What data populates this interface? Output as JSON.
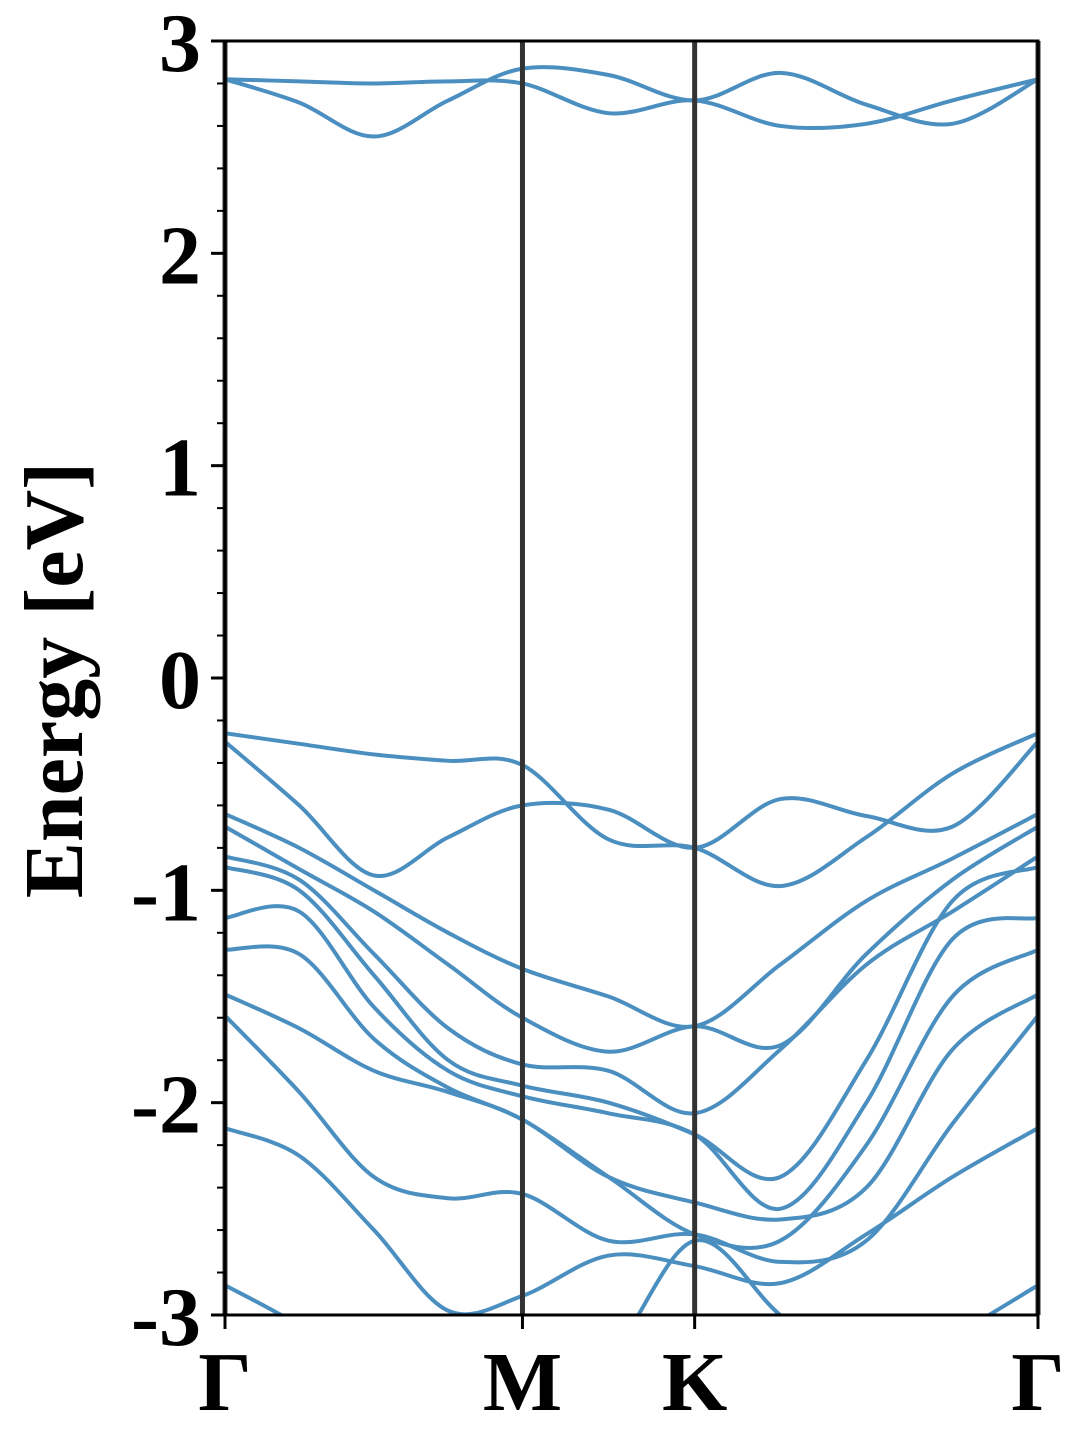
{
  "chart_data": {
    "type": "line",
    "y_label": "Energy [eV]",
    "x": [
      0,
      0.144,
      0.289,
      0.433,
      0.577,
      0.744,
      0.911,
      1.077,
      1.244,
      1.411,
      1.577
    ],
    "xlim": [
      0,
      1.577
    ],
    "xticks": [
      {
        "value": 0,
        "label": "Γ"
      },
      {
        "value": 0.577,
        "label": "M"
      },
      {
        "value": 0.911,
        "label": "K"
      },
      {
        "value": 1.577,
        "label": "Γ"
      }
    ],
    "ylim": [
      -3,
      3
    ],
    "yticks": [
      -3,
      -2,
      -1,
      0,
      1,
      2,
      3
    ],
    "yminorticks": [
      -2.8,
      -2.6,
      -2.4,
      -2.2,
      -1.8,
      -1.6,
      -1.4,
      -1.2,
      -0.8,
      -0.6,
      -0.4,
      -0.2,
      0.2,
      0.4,
      0.6,
      0.8,
      1.2,
      1.4,
      1.6,
      1.8,
      2.2,
      2.4,
      2.6,
      2.8
    ],
    "xtick_line_color": "#333333",
    "series": [
      {
        "color": "#4a8fc0",
        "values": [
          2.82,
          2.71,
          2.55,
          2.72,
          2.87,
          2.84,
          2.72,
          2.85,
          2.7,
          2.61,
          2.82
        ]
      },
      {
        "color": "#4a8fc0",
        "values": [
          2.82,
          2.81,
          2.8,
          2.81,
          2.8,
          2.66,
          2.72,
          2.6,
          2.61,
          2.72,
          2.82
        ]
      },
      {
        "color": "#4a8fc0",
        "values": [
          -0.26,
          -0.31,
          -0.36,
          -0.39,
          -0.41,
          -0.76,
          -0.8,
          -0.98,
          -0.75,
          -0.45,
          -0.26
        ]
      },
      {
        "color": "#4a8fc0",
        "values": [
          -0.3,
          -0.6,
          -0.93,
          -0.75,
          -0.6,
          -0.62,
          -0.8,
          -0.57,
          -0.65,
          -0.7,
          -0.3
        ]
      },
      {
        "color": "#4a8fc0",
        "values": [
          -0.64,
          -0.8,
          -1.0,
          -1.2,
          -1.37,
          -1.5,
          -1.64,
          -1.35,
          -1.05,
          -0.85,
          -0.64
        ]
      },
      {
        "color": "#4a8fc0",
        "values": [
          -0.7,
          -0.9,
          -1.1,
          -1.35,
          -1.6,
          -1.76,
          -1.64,
          -1.73,
          -1.3,
          -0.95,
          -0.7
        ]
      },
      {
        "color": "#4a8fc0",
        "values": [
          -0.84,
          -0.95,
          -1.3,
          -1.65,
          -1.82,
          -1.85,
          -2.05,
          -1.75,
          -1.35,
          -1.1,
          -0.84
        ]
      },
      {
        "color": "#4a8fc0",
        "values": [
          -0.89,
          -1.0,
          -1.4,
          -1.8,
          -1.92,
          -2.0,
          -2.15,
          -2.35,
          -1.8,
          -1.05,
          -0.89
        ]
      },
      {
        "color": "#4a8fc0",
        "values": [
          -1.13,
          -1.1,
          -1.55,
          -1.85,
          -1.97,
          -2.05,
          -2.15,
          -2.5,
          -2.0,
          -1.23,
          -1.13
        ]
      },
      {
        "color": "#4a8fc0",
        "values": [
          -1.28,
          -1.3,
          -1.7,
          -1.93,
          -2.08,
          -2.35,
          -2.62,
          -2.65,
          -2.2,
          -1.5,
          -1.28
        ]
      },
      {
        "color": "#4a8fc0",
        "values": [
          -1.49,
          -1.65,
          -1.85,
          -1.95,
          -2.08,
          -2.35,
          -2.47,
          -2.55,
          -2.4,
          -1.75,
          -1.49
        ]
      },
      {
        "color": "#4a8fc0",
        "values": [
          -1.59,
          -1.95,
          -2.35,
          -2.45,
          -2.43,
          -2.65,
          -2.62,
          -2.75,
          -2.65,
          -2.1,
          -1.59
        ]
      },
      {
        "color": "#4a8fc0",
        "values": [
          -2.12,
          -2.25,
          -2.6,
          -2.98,
          -2.91,
          -2.72,
          -2.77,
          -2.85,
          -2.62,
          -2.35,
          -2.12
        ]
      },
      {
        "color": "#4a8fc0",
        "values": [
          -2.86,
          -3.05,
          -3.3,
          -3.4,
          -3.4,
          -3.2,
          -2.65,
          -3.0,
          -3.3,
          -3.1,
          -2.86
        ]
      }
    ]
  }
}
